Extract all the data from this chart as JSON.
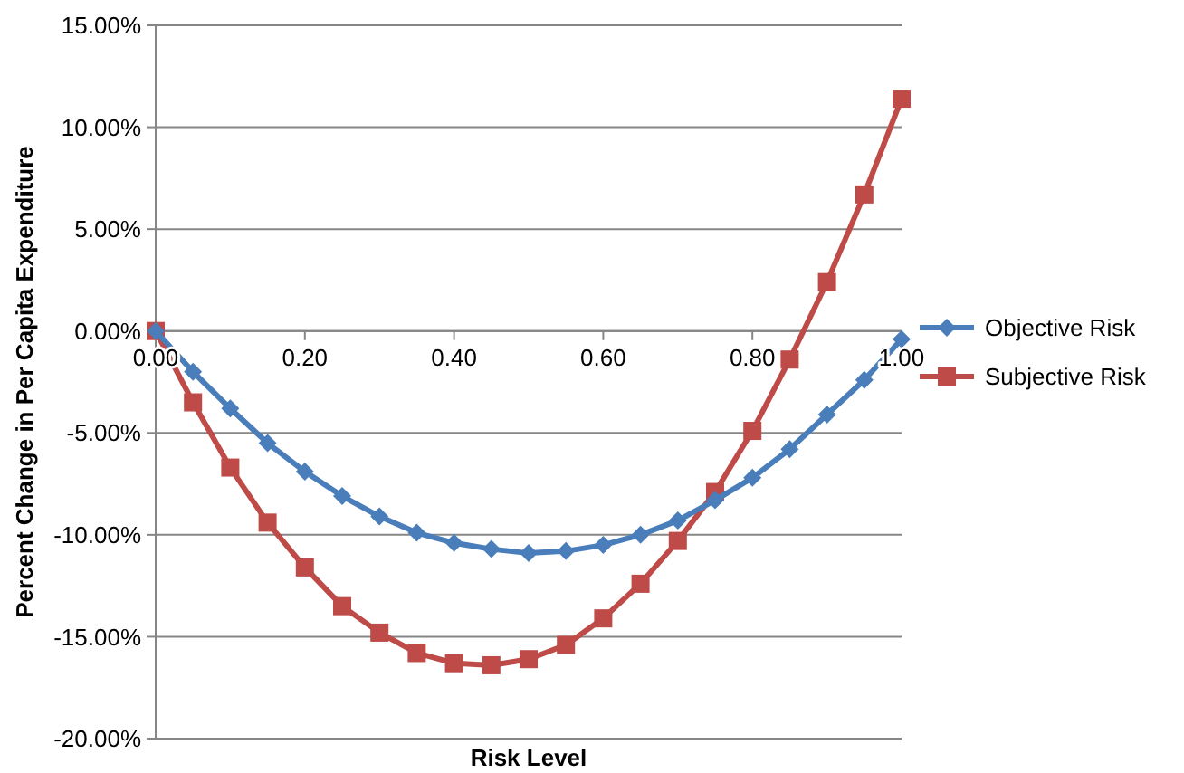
{
  "chart_data": {
    "type": "line",
    "xlabel": "Risk Level",
    "ylabel": "Percent Change in Per Capita Expenditure",
    "x": [
      0,
      0.05,
      0.1,
      0.15,
      0.2,
      0.25,
      0.3,
      0.35,
      0.4,
      0.45,
      0.5,
      0.55,
      0.6,
      0.65,
      0.7,
      0.75,
      0.8,
      0.85,
      0.9,
      0.95,
      1.0
    ],
    "series": [
      {
        "name": "Objective Risk",
        "color": "#4a7ebb",
        "marker": "diamond",
        "values": [
          0,
          -2.0,
          -3.8,
          -5.5,
          -6.9,
          -8.1,
          -9.1,
          -9.9,
          -10.4,
          -10.7,
          -10.9,
          -10.8,
          -10.5,
          -10.0,
          -9.3,
          -8.3,
          -7.2,
          -5.8,
          -4.1,
          -2.4,
          -0.4
        ]
      },
      {
        "name": "Subjective Risk",
        "color": "#be4b48",
        "marker": "square",
        "values": [
          0,
          -3.5,
          -6.7,
          -9.4,
          -11.6,
          -13.5,
          -14.8,
          -15.8,
          -16.3,
          -16.4,
          -16.1,
          -15.4,
          -14.1,
          -12.4,
          -10.3,
          -7.9,
          -4.9,
          -1.4,
          2.4,
          6.7,
          11.4
        ]
      }
    ],
    "xlim": [
      0,
      1
    ],
    "xticks": [
      {
        "value": 0,
        "label": "0.00"
      },
      {
        "value": 0.2,
        "label": "0.20"
      },
      {
        "value": 0.4,
        "label": "0.40"
      },
      {
        "value": 0.6,
        "label": "0.60"
      },
      {
        "value": 0.8,
        "label": "0.80"
      },
      {
        "value": 1,
        "label": "1.00"
      }
    ],
    "ylim": [
      -20,
      15
    ],
    "yticks": [
      {
        "value": -20,
        "label": "-20.00%"
      },
      {
        "value": -15,
        "label": "-15.00%"
      },
      {
        "value": -10,
        "label": "-10.00%"
      },
      {
        "value": -5,
        "label": "-5.00%"
      },
      {
        "value": 0,
        "label": "0.00%"
      },
      {
        "value": 5,
        "label": "5.00%"
      },
      {
        "value": 10,
        "label": "10.00%"
      },
      {
        "value": 15,
        "label": "15.00%"
      }
    ],
    "grid": "y",
    "legend": "right",
    "line_style": "solid"
  }
}
